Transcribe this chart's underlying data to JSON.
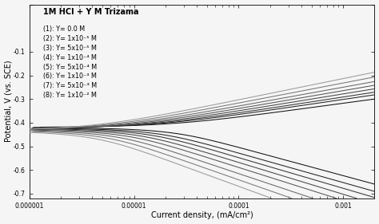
{
  "title": "1M HCl + Y M Trizama",
  "xlabel": "Current density, (mA/cm²)",
  "ylabel": "Potential, V (vs. SCE)",
  "legend_entries": [
    "(1): Y= 0.0 M",
    "(2): Y= 1x10⁻⁵ M",
    "(3): Y= 5x10⁻⁵ M",
    "(4): Y= 1x10⁻⁴ M",
    "(5): Y= 5x10⁻⁴ M",
    "(6): Y= 1x10⁻³ M",
    "(7): Y= 5x10⁻³ M",
    "(8): Y= 1x10⁻² M"
  ],
  "ylim": [
    -0.72,
    0.1
  ],
  "bg_color": "#f5f5f5",
  "title_fontsize": 7,
  "legend_fontsize": 5.8,
  "axis_fontsize": 7,
  "tick_fontsize": 5.5,
  "icorr_log": [
    -4.7,
    -4.85,
    -4.95,
    -5.05,
    -5.15,
    -5.25,
    -5.35,
    -5.45
  ],
  "ecorr": [
    -0.42,
    -0.422,
    -0.424,
    -0.426,
    -0.428,
    -0.43,
    -0.432,
    -0.434
  ],
  "ba": [
    0.06,
    0.065,
    0.068,
    0.072,
    0.076,
    0.08,
    0.085,
    0.09
  ],
  "bc": [
    0.12,
    0.125,
    0.13,
    0.135,
    0.14,
    0.148,
    0.155,
    0.162
  ]
}
